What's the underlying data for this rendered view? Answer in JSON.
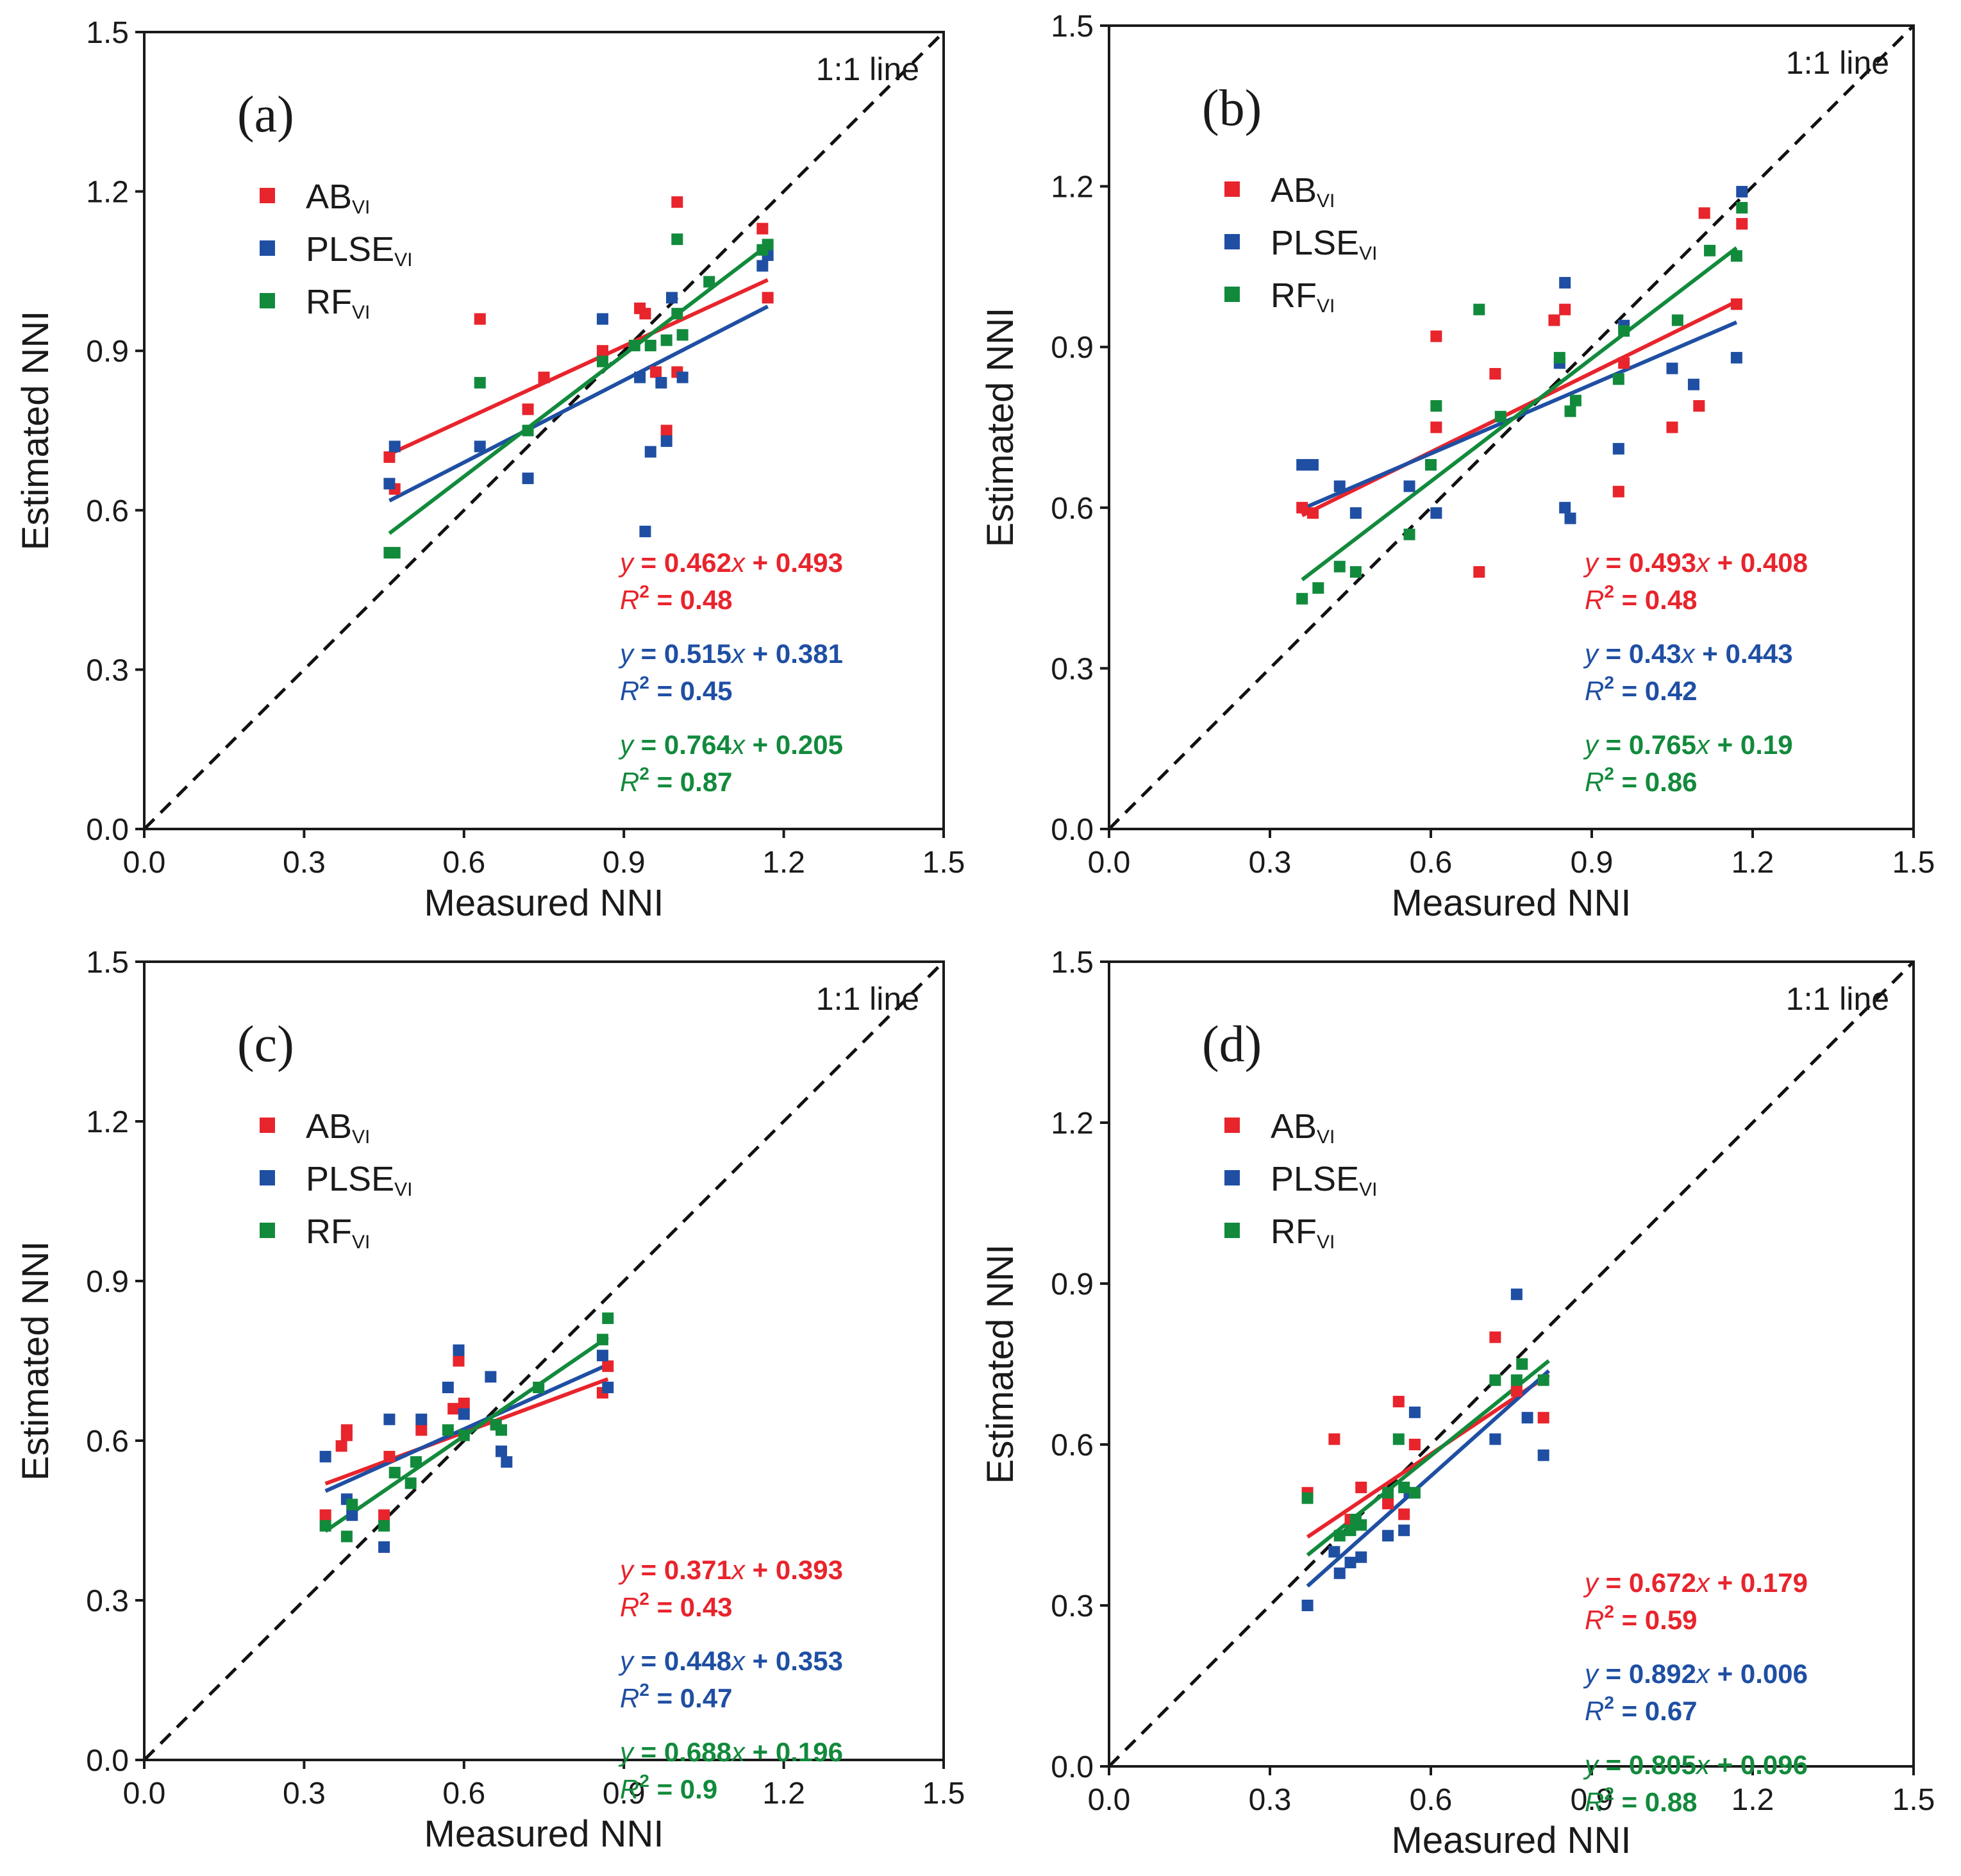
{
  "figure": {
    "colors": {
      "AB": "#e8242c",
      "PLSE": "#1f4fa3",
      "RF": "#128a3c",
      "axis": "#1a1a1a"
    }
  },
  "chart_data": [
    {
      "type": "scatter",
      "panel": "(a)",
      "xlabel": "Measured NNI",
      "ylabel": "Estimated NNI",
      "xlim": [
        0,
        1.5
      ],
      "ylim": [
        0,
        1.5
      ],
      "ticks": [
        "0.0",
        "0.3",
        "0.6",
        "0.9",
        "1.2",
        "1.5"
      ],
      "reference_label": "1:1 line",
      "legend": [
        {
          "key": "AB",
          "base": "AB",
          "sub": "VI"
        },
        {
          "key": "PLSE",
          "base": "PLSE",
          "sub": "VI"
        },
        {
          "key": "RF",
          "base": "RF",
          "sub": "VI"
        }
      ],
      "series": [
        {
          "key": "AB",
          "slope": 0.462,
          "intercept": 0.493,
          "x_range": [
            0.46,
            1.17
          ],
          "eq_y": "y",
          "eq_x": "x",
          "eq_slope": " = 0.462",
          "eq_rest": " + 0.493",
          "r2_label": "R",
          "r2_value": " = 0.48",
          "points": [
            [
              0.46,
              0.7
            ],
            [
              0.47,
              0.64
            ],
            [
              0.63,
              0.96
            ],
            [
              0.72,
              0.79
            ],
            [
              0.75,
              0.85
            ],
            [
              0.86,
              0.9
            ],
            [
              0.93,
              0.98
            ],
            [
              0.94,
              0.97
            ],
            [
              0.96,
              0.86
            ],
            [
              0.98,
              0.75
            ],
            [
              1.0,
              0.86
            ],
            [
              1.0,
              1.18
            ],
            [
              1.16,
              1.13
            ],
            [
              1.17,
              1.0
            ]
          ]
        },
        {
          "key": "PLSE",
          "slope": 0.515,
          "intercept": 0.381,
          "x_range": [
            0.46,
            1.17
          ],
          "eq_y": "y",
          "eq_x": "x",
          "eq_slope": " = 0.515",
          "eq_rest": " + 0.381",
          "r2_label": "R",
          "r2_value": " = 0.45",
          "points": [
            [
              0.46,
              0.65
            ],
            [
              0.47,
              0.72
            ],
            [
              0.63,
              0.72
            ],
            [
              0.72,
              0.66
            ],
            [
              0.86,
              0.96
            ],
            [
              0.93,
              0.85
            ],
            [
              0.94,
              0.56
            ],
            [
              0.95,
              0.71
            ],
            [
              0.97,
              0.84
            ],
            [
              0.98,
              0.73
            ],
            [
              0.99,
              1.0
            ],
            [
              1.01,
              0.85
            ],
            [
              1.16,
              1.06
            ],
            [
              1.17,
              1.08
            ]
          ]
        },
        {
          "key": "RF",
          "slope": 0.764,
          "intercept": 0.205,
          "x_range": [
            0.46,
            1.17
          ],
          "eq_y": "y",
          "eq_x": "x",
          "eq_slope": " = 0.764",
          "eq_rest": " + 0.205",
          "r2_label": "R",
          "r2_value": " = 0.87",
          "points": [
            [
              0.46,
              0.52
            ],
            [
              0.47,
              0.52
            ],
            [
              0.63,
              0.84
            ],
            [
              0.72,
              0.75
            ],
            [
              0.86,
              0.88
            ],
            [
              0.92,
              0.91
            ],
            [
              0.95,
              0.91
            ],
            [
              0.98,
              0.92
            ],
            [
              1.0,
              0.97
            ],
            [
              1.0,
              1.11
            ],
            [
              1.01,
              0.93
            ],
            [
              1.06,
              1.03
            ],
            [
              1.16,
              1.09
            ],
            [
              1.17,
              1.1
            ]
          ]
        }
      ]
    },
    {
      "type": "scatter",
      "panel": "(b)",
      "xlabel": "Measured NNI",
      "ylabel": "Estimated NNI",
      "xlim": [
        0,
        1.5
      ],
      "ylim": [
        0,
        1.5
      ],
      "ticks": [
        "0.0",
        "0.3",
        "0.6",
        "0.9",
        "1.2",
        "1.5"
      ],
      "reference_label": "1:1 line",
      "legend": [
        {
          "key": "AB",
          "base": "AB",
          "sub": "VI"
        },
        {
          "key": "PLSE",
          "base": "PLSE",
          "sub": "VI"
        },
        {
          "key": "RF",
          "base": "RF",
          "sub": "VI"
        }
      ],
      "series": [
        {
          "key": "AB",
          "slope": 0.493,
          "intercept": 0.408,
          "x_range": [
            0.36,
            1.17
          ],
          "eq_y": "y",
          "eq_x": "x",
          "eq_slope": " = 0.493",
          "eq_rest": " + 0.408",
          "r2_label": "R",
          "r2_value": " = 0.48",
          "points": [
            [
              0.36,
              0.6
            ],
            [
              0.38,
              0.59
            ],
            [
              0.61,
              0.92
            ],
            [
              0.61,
              0.75
            ],
            [
              0.69,
              0.48
            ],
            [
              0.72,
              0.85
            ],
            [
              0.83,
              0.95
            ],
            [
              0.85,
              0.97
            ],
            [
              0.95,
              0.63
            ],
            [
              0.96,
              0.87
            ],
            [
              1.05,
              0.75
            ],
            [
              1.1,
              0.79
            ],
            [
              1.11,
              1.15
            ],
            [
              1.17,
              0.98
            ],
            [
              1.18,
              1.13
            ]
          ]
        },
        {
          "key": "PLSE",
          "slope": 0.43,
          "intercept": 0.443,
          "x_range": [
            0.36,
            1.17
          ],
          "eq_y": "y",
          "eq_x": "x",
          "eq_slope": " = 0.43",
          "eq_rest": " + 0.443",
          "r2_label": "R",
          "r2_value": " = 0.42",
          "points": [
            [
              0.36,
              0.68
            ],
            [
              0.38,
              0.68
            ],
            [
              0.43,
              0.64
            ],
            [
              0.46,
              0.59
            ],
            [
              0.56,
              0.64
            ],
            [
              0.61,
              0.59
            ],
            [
              0.84,
              0.87
            ],
            [
              0.85,
              1.02
            ],
            [
              0.85,
              0.6
            ],
            [
              0.86,
              0.58
            ],
            [
              0.95,
              0.71
            ],
            [
              0.96,
              0.94
            ],
            [
              1.05,
              0.86
            ],
            [
              1.09,
              0.83
            ],
            [
              1.17,
              0.88
            ],
            [
              1.18,
              1.19
            ]
          ]
        },
        {
          "key": "RF",
          "slope": 0.765,
          "intercept": 0.19,
          "x_range": [
            0.36,
            1.17
          ],
          "eq_y": "y",
          "eq_x": "x",
          "eq_slope": " = 0.765",
          "eq_rest": " + 0.19",
          "r2_label": "R",
          "r2_value": " = 0.86",
          "points": [
            [
              0.36,
              0.43
            ],
            [
              0.39,
              0.45
            ],
            [
              0.43,
              0.49
            ],
            [
              0.46,
              0.48
            ],
            [
              0.56,
              0.55
            ],
            [
              0.6,
              0.68
            ],
            [
              0.61,
              0.79
            ],
            [
              0.69,
              0.97
            ],
            [
              0.73,
              0.77
            ],
            [
              0.84,
              0.88
            ],
            [
              0.86,
              0.78
            ],
            [
              0.87,
              0.8
            ],
            [
              0.95,
              0.84
            ],
            [
              0.96,
              0.93
            ],
            [
              1.06,
              0.95
            ],
            [
              1.12,
              1.08
            ],
            [
              1.17,
              1.07
            ],
            [
              1.18,
              1.16
            ]
          ]
        }
      ]
    },
    {
      "type": "scatter",
      "panel": "(c)",
      "xlabel": "Measured NNI",
      "ylabel": "Estimated NNI",
      "xlim": [
        0,
        1.5
      ],
      "ylim": [
        0,
        1.5
      ],
      "ticks": [
        "0.0",
        "0.3",
        "0.6",
        "0.9",
        "1.2",
        "1.5"
      ],
      "reference_label": "1:1 line",
      "legend": [
        {
          "key": "AB",
          "base": "AB",
          "sub": "VI"
        },
        {
          "key": "PLSE",
          "base": "PLSE",
          "sub": "VI"
        },
        {
          "key": "RF",
          "base": "RF",
          "sub": "VI"
        }
      ],
      "series": [
        {
          "key": "AB",
          "slope": 0.371,
          "intercept": 0.393,
          "x_range": [
            0.34,
            0.87
          ],
          "eq_y": "y",
          "eq_x": "x",
          "eq_slope": " = 0.371",
          "eq_rest": " + 0.393",
          "r2_label": "R",
          "r2_value": " = 0.43",
          "points": [
            [
              0.34,
              0.46
            ],
            [
              0.37,
              0.59
            ],
            [
              0.38,
              0.61
            ],
            [
              0.38,
              0.62
            ],
            [
              0.45,
              0.46
            ],
            [
              0.46,
              0.57
            ],
            [
              0.52,
              0.62
            ],
            [
              0.58,
              0.66
            ],
            [
              0.59,
              0.75
            ],
            [
              0.6,
              0.67
            ],
            [
              0.66,
              0.63
            ],
            [
              0.86,
              0.69
            ],
            [
              0.87,
              0.74
            ]
          ]
        },
        {
          "key": "PLSE",
          "slope": 0.448,
          "intercept": 0.353,
          "x_range": [
            0.34,
            0.87
          ],
          "eq_y": "y",
          "eq_x": "x",
          "eq_slope": " = 0.448",
          "eq_rest": " + 0.353",
          "r2_label": "R",
          "r2_value": " = 0.47",
          "points": [
            [
              0.34,
              0.57
            ],
            [
              0.38,
              0.49
            ],
            [
              0.39,
              0.46
            ],
            [
              0.45,
              0.4
            ],
            [
              0.46,
              0.64
            ],
            [
              0.52,
              0.64
            ],
            [
              0.57,
              0.7
            ],
            [
              0.59,
              0.77
            ],
            [
              0.6,
              0.65
            ],
            [
              0.65,
              0.72
            ],
            [
              0.67,
              0.58
            ],
            [
              0.68,
              0.56
            ],
            [
              0.86,
              0.76
            ],
            [
              0.87,
              0.7
            ]
          ]
        },
        {
          "key": "RF",
          "slope": 0.688,
          "intercept": 0.196,
          "x_range": [
            0.34,
            0.87
          ],
          "eq_y": "y",
          "eq_x": "x",
          "eq_slope": " = 0.688",
          "eq_rest": " + 0.196",
          "r2_label": "R",
          "r2_value": " = 0.9",
          "points": [
            [
              0.34,
              0.44
            ],
            [
              0.38,
              0.42
            ],
            [
              0.39,
              0.48
            ],
            [
              0.45,
              0.44
            ],
            [
              0.47,
              0.54
            ],
            [
              0.5,
              0.52
            ],
            [
              0.51,
              0.56
            ],
            [
              0.57,
              0.62
            ],
            [
              0.6,
              0.61
            ],
            [
              0.66,
              0.63
            ],
            [
              0.67,
              0.62
            ],
            [
              0.74,
              0.7
            ],
            [
              0.86,
              0.79
            ],
            [
              0.87,
              0.83
            ]
          ]
        }
      ]
    },
    {
      "type": "scatter",
      "panel": "(d)",
      "xlabel": "Measured NNI",
      "ylabel": "Estimated NNI",
      "xlim": [
        0,
        1.5
      ],
      "ylim": [
        0,
        1.5
      ],
      "ticks": [
        "0.0",
        "0.3",
        "0.6",
        "0.9",
        "1.2",
        "1.5"
      ],
      "reference_label": "1:1 line",
      "legend": [
        {
          "key": "AB",
          "base": "AB",
          "sub": "VI"
        },
        {
          "key": "PLSE",
          "base": "PLSE",
          "sub": "VI"
        },
        {
          "key": "RF",
          "base": "RF",
          "sub": "VI"
        }
      ],
      "series": [
        {
          "key": "AB",
          "slope": 0.672,
          "intercept": 0.179,
          "x_range": [
            0.37,
            0.82
          ],
          "eq_y": "y",
          "eq_x": "x",
          "eq_slope": " = 0.672",
          "eq_rest": " + 0.179",
          "r2_label": "R",
          "r2_value": " = 0.59",
          "points": [
            [
              0.37,
              0.51
            ],
            [
              0.42,
              0.61
            ],
            [
              0.45,
              0.46
            ],
            [
              0.47,
              0.52
            ],
            [
              0.52,
              0.49
            ],
            [
              0.54,
              0.68
            ],
            [
              0.55,
              0.47
            ],
            [
              0.57,
              0.6
            ],
            [
              0.72,
              0.8
            ],
            [
              0.76,
              0.7
            ],
            [
              0.81,
              0.65
            ]
          ]
        },
        {
          "key": "PLSE",
          "slope": 0.892,
          "intercept": 0.006,
          "x_range": [
            0.37,
            0.82
          ],
          "eq_y": "y",
          "eq_x": "x",
          "eq_slope": " = 0.892",
          "eq_rest": " + 0.006",
          "r2_label": "R",
          "r2_value": " = 0.67",
          "points": [
            [
              0.37,
              0.3
            ],
            [
              0.42,
              0.4
            ],
            [
              0.43,
              0.36
            ],
            [
              0.45,
              0.38
            ],
            [
              0.47,
              0.39
            ],
            [
              0.52,
              0.43
            ],
            [
              0.55,
              0.44
            ],
            [
              0.56,
              0.51
            ],
            [
              0.57,
              0.66
            ],
            [
              0.72,
              0.61
            ],
            [
              0.76,
              0.88
            ],
            [
              0.78,
              0.65
            ],
            [
              0.81,
              0.58
            ]
          ]
        },
        {
          "key": "RF",
          "slope": 0.805,
          "intercept": 0.096,
          "x_range": [
            0.37,
            0.82
          ],
          "eq_y": "y",
          "eq_x": "x",
          "eq_slope": " = 0.805",
          "eq_rest": " + 0.096",
          "r2_label": "R",
          "r2_value": " = 0.88",
          "points": [
            [
              0.37,
              0.5
            ],
            [
              0.43,
              0.43
            ],
            [
              0.45,
              0.44
            ],
            [
              0.46,
              0.46
            ],
            [
              0.47,
              0.45
            ],
            [
              0.52,
              0.51
            ],
            [
              0.54,
              0.61
            ],
            [
              0.55,
              0.52
            ],
            [
              0.57,
              0.51
            ],
            [
              0.72,
              0.72
            ],
            [
              0.76,
              0.72
            ],
            [
              0.77,
              0.75
            ],
            [
              0.81,
              0.72
            ]
          ]
        }
      ]
    }
  ]
}
